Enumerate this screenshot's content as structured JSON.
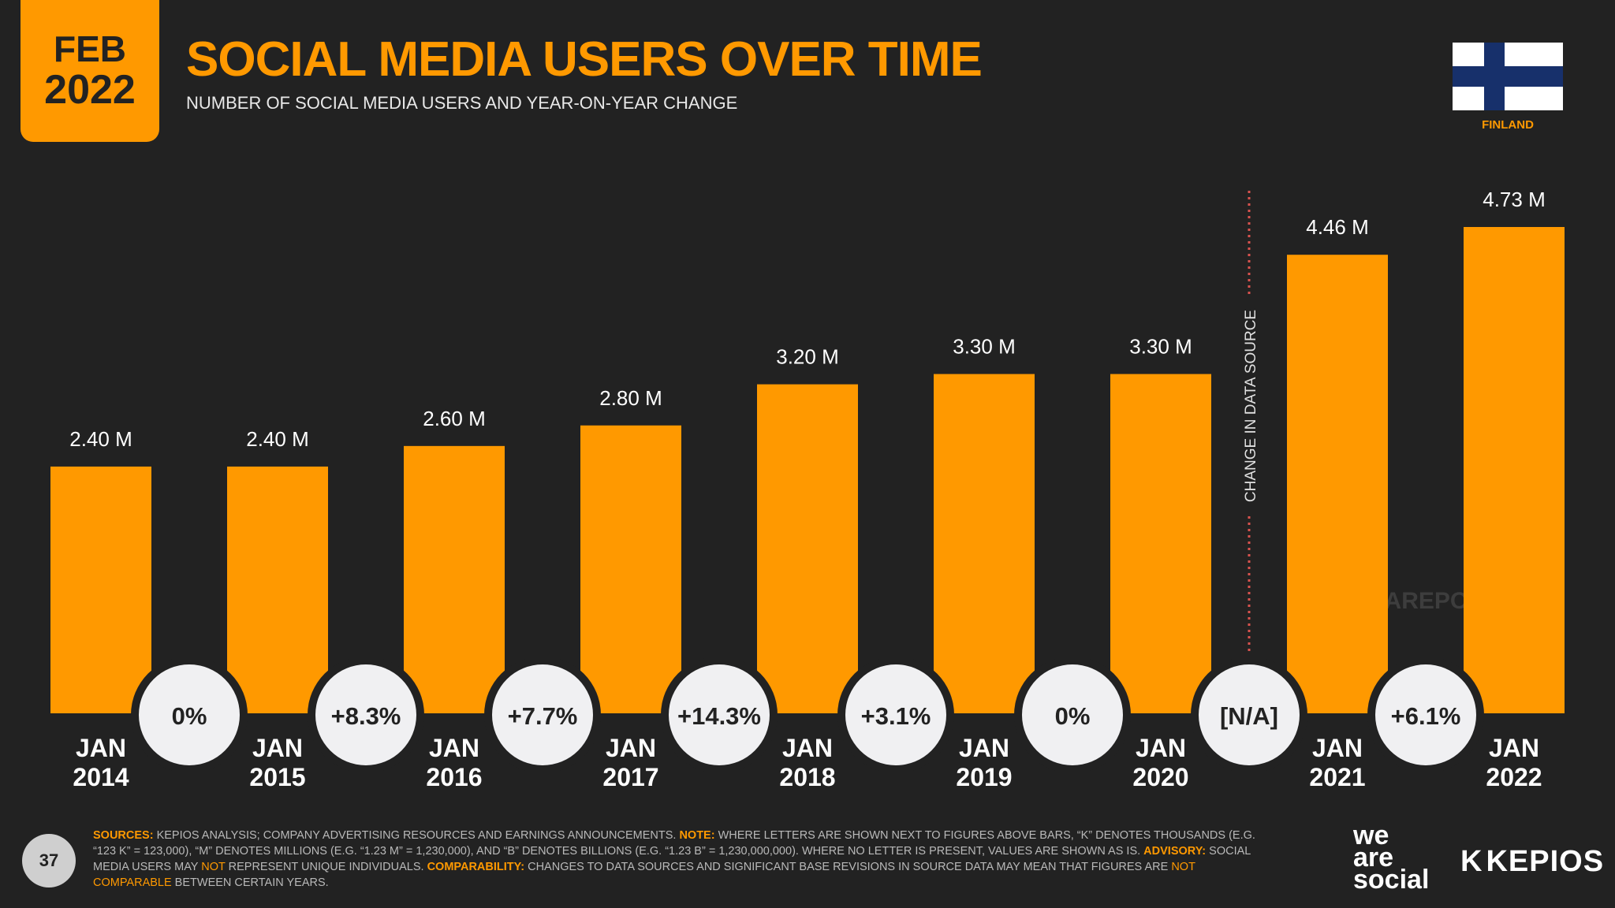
{
  "header": {
    "month": "FEB",
    "year": "2022",
    "title": "SOCIAL MEDIA USERS OVER TIME",
    "subtitle": "NUMBER OF SOCIAL MEDIA USERS AND YEAR-ON-YEAR CHANGE",
    "country": "FINLAND"
  },
  "colors": {
    "accent": "#FF9900",
    "background": "#222222",
    "circle": "#f0f0f2",
    "flag_blue": "#17306b"
  },
  "chart_data": {
    "type": "bar",
    "categories": [
      "JAN 2014",
      "JAN 2015",
      "JAN 2016",
      "JAN 2017",
      "JAN 2018",
      "JAN 2019",
      "JAN 2020",
      "JAN 2021",
      "JAN 2022"
    ],
    "category_month": [
      "JAN",
      "JAN",
      "JAN",
      "JAN",
      "JAN",
      "JAN",
      "JAN",
      "JAN",
      "JAN"
    ],
    "category_year": [
      "2014",
      "2015",
      "2016",
      "2017",
      "2018",
      "2019",
      "2020",
      "2021",
      "2022"
    ],
    "values": [
      2.4,
      2.4,
      2.6,
      2.8,
      3.2,
      3.3,
      3.3,
      4.46,
      4.73
    ],
    "value_labels": [
      "2.40 M",
      "2.40 M",
      "2.60 M",
      "2.80 M",
      "3.20 M",
      "3.30 M",
      "3.30 M",
      "4.46 M",
      "4.73 M"
    ],
    "unit": "M",
    "yoy_changes": [
      "0%",
      "+8.3%",
      "+7.7%",
      "+14.3%",
      "+3.1%",
      "0%",
      "[N/A]",
      "+6.1%"
    ],
    "annotation": "CHANGE IN DATA SOURCE",
    "watermark": "DATAREPORTAL",
    "ylim": [
      0,
      4.73
    ]
  },
  "footer": {
    "page_number": "37",
    "sources_label": "SOURCES:",
    "sources_text": " KEPIOS ANALYSIS; COMPANY ADVERTISING RESOURCES AND EARNINGS ANNOUNCEMENTS. ",
    "note_label": "NOTE:",
    "note_text": " WHERE LETTERS ARE SHOWN NEXT TO FIGURES ABOVE BARS, “K” DENOTES THOUSANDS (E.G. “123 K” = 123,000), “M” DENOTES MILLIONS (E.G. “1.23 M” = 1,230,000), AND “B” DENOTES BILLIONS (E.G. “1.23 B” = 1,230,000,000). WHERE NO LETTER IS PRESENT, VALUES ARE SHOWN AS IS. ",
    "advisory_label": "ADVISORY:",
    "advisory_text_1": " SOCIAL MEDIA USERS MAY ",
    "advisory_not": "NOT",
    "advisory_text_2": " REPRESENT UNIQUE INDIVIDUALS. ",
    "comparability_label": "COMPARABILITY:",
    "comparability_text": " CHANGES TO DATA SOURCES AND SIGNIFICANT BASE REVISIONS IN SOURCE DATA MAY MEAN THAT FIGURES ARE ",
    "comparability_not": "NOT COMPARABLE",
    "comparability_end": " BETWEEN CERTAIN YEARS.",
    "brand_line_1": "we",
    "brand_line_2": "are",
    "brand_line_3": "social",
    "kepios_k": "K",
    "kepios_rest": "KEPIOS"
  }
}
